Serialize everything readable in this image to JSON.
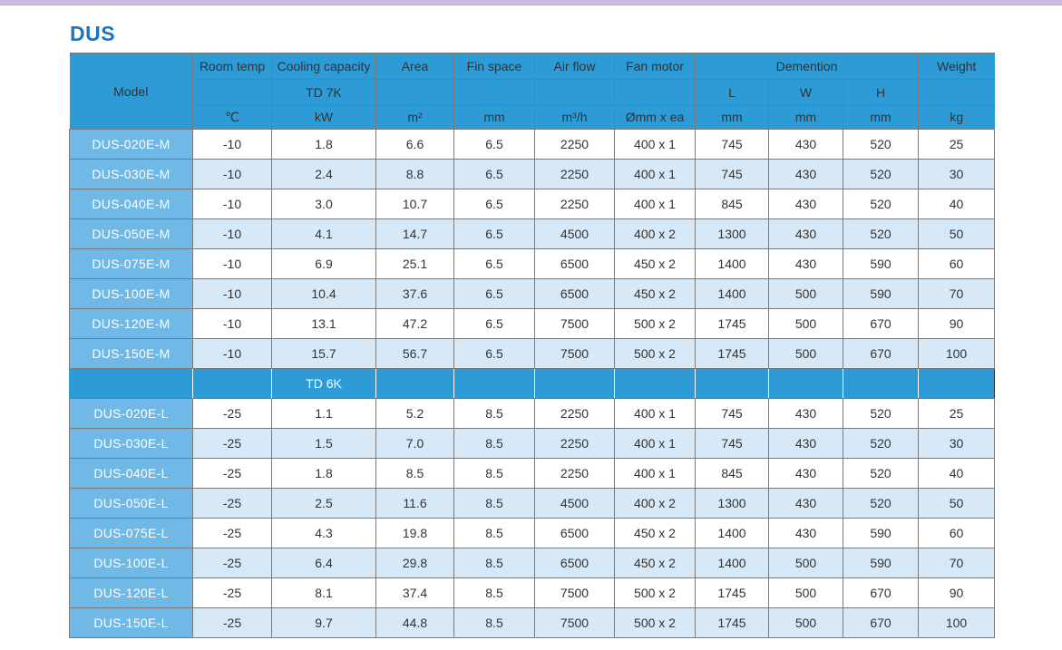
{
  "title": "DUS",
  "header": {
    "model": "Model",
    "room_temp": "Room temp",
    "room_temp_unit": "℃",
    "cooling_capacity": "Cooling capacity",
    "td_top": "TD 7K",
    "cooling_unit": "kW",
    "area": "Area",
    "area_unit": "m²",
    "fin_space": "Fin space",
    "fin_unit": "mm",
    "air_flow": "Air flow",
    "air_unit": "m³/h",
    "fan_motor": "Fan motor",
    "fan_unit": "Ømm x ea",
    "dimension": "Demention",
    "dim_l": "L",
    "dim_w": "W",
    "dim_h": "H",
    "dim_l_unit": "mm",
    "dim_w_unit": "mm",
    "dim_h_unit": "mm",
    "weight": "Weight",
    "weight_unit": "kg"
  },
  "separator": {
    "td_label": "TD 6K"
  },
  "rows_m": [
    [
      "DUS-020E-M",
      "-10",
      "1.8",
      "6.6",
      "6.5",
      "2250",
      "400 x 1",
      "745",
      "430",
      "520",
      "25"
    ],
    [
      "DUS-030E-M",
      "-10",
      "2.4",
      "8.8",
      "6.5",
      "2250",
      "400 x 1",
      "745",
      "430",
      "520",
      "30"
    ],
    [
      "DUS-040E-M",
      "-10",
      "3.0",
      "10.7",
      "6.5",
      "2250",
      "400 x 1",
      "845",
      "430",
      "520",
      "40"
    ],
    [
      "DUS-050E-M",
      "-10",
      "4.1",
      "14.7",
      "6.5",
      "4500",
      "400 x 2",
      "1300",
      "430",
      "520",
      "50"
    ],
    [
      "DUS-075E-M",
      "-10",
      "6.9",
      "25.1",
      "6.5",
      "6500",
      "450 x 2",
      "1400",
      "430",
      "590",
      "60"
    ],
    [
      "DUS-100E-M",
      "-10",
      "10.4",
      "37.6",
      "6.5",
      "6500",
      "450 x 2",
      "1400",
      "500",
      "590",
      "70"
    ],
    [
      "DUS-120E-M",
      "-10",
      "13.1",
      "47.2",
      "6.5",
      "7500",
      "500 x 2",
      "1745",
      "500",
      "670",
      "90"
    ],
    [
      "DUS-150E-M",
      "-10",
      "15.7",
      "56.7",
      "6.5",
      "7500",
      "500 x 2",
      "1745",
      "500",
      "670",
      "100"
    ]
  ],
  "rows_l": [
    [
      "DUS-020E-L",
      "-25",
      "1.1",
      "5.2",
      "8.5",
      "2250",
      "400 x 1",
      "745",
      "430",
      "520",
      "25"
    ],
    [
      "DUS-030E-L",
      "-25",
      "1.5",
      "7.0",
      "8.5",
      "2250",
      "400 x 1",
      "745",
      "430",
      "520",
      "30"
    ],
    [
      "DUS-040E-L",
      "-25",
      "1.8",
      "8.5",
      "8.5",
      "2250",
      "400 x 1",
      "845",
      "430",
      "520",
      "40"
    ],
    [
      "DUS-050E-L",
      "-25",
      "2.5",
      "11.6",
      "8.5",
      "4500",
      "400 x 2",
      "1300",
      "430",
      "520",
      "50"
    ],
    [
      "DUS-075E-L",
      "-25",
      "4.3",
      "19.8",
      "8.5",
      "6500",
      "450 x 2",
      "1400",
      "430",
      "590",
      "60"
    ],
    [
      "DUS-100E-L",
      "-25",
      "6.4",
      "29.8",
      "8.5",
      "6500",
      "450 x 2",
      "1400",
      "500",
      "590",
      "70"
    ],
    [
      "DUS-120E-L",
      "-25",
      "8.1",
      "37.4",
      "8.5",
      "7500",
      "500 x 2",
      "1745",
      "500",
      "670",
      "90"
    ],
    [
      "DUS-150E-L",
      "-25",
      "9.7",
      "44.8",
      "8.5",
      "7500",
      "500 x 2",
      "1745",
      "500",
      "670",
      "100"
    ]
  ]
}
